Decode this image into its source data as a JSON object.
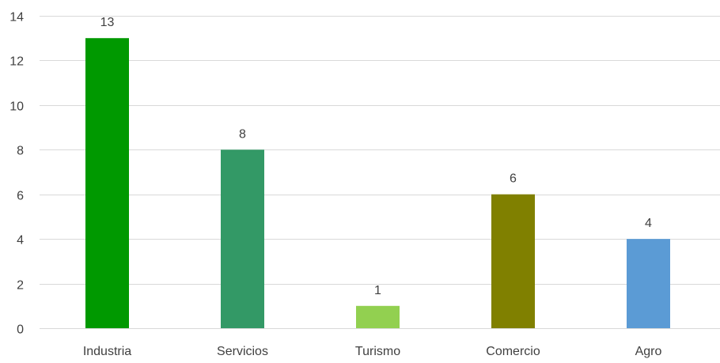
{
  "chart_data": {
    "type": "bar",
    "categories": [
      "Industria",
      "Servicios",
      "Turismo",
      "Comercio",
      "Agro"
    ],
    "values": [
      13,
      8,
      1,
      6,
      4
    ],
    "colors": [
      "#009900",
      "#339966",
      "#92d050",
      "#808000",
      "#5b9bd5"
    ],
    "data_labels": [
      "13",
      "8",
      "1",
      "6",
      "4"
    ],
    "ylim": [
      0,
      14
    ],
    "yticks": [
      0,
      2,
      4,
      6,
      8,
      10,
      12,
      14
    ],
    "ytick_labels": [
      "0",
      "2",
      "4",
      "6",
      "8",
      "10",
      "12",
      "14"
    ],
    "grid": true,
    "legend": "none"
  }
}
